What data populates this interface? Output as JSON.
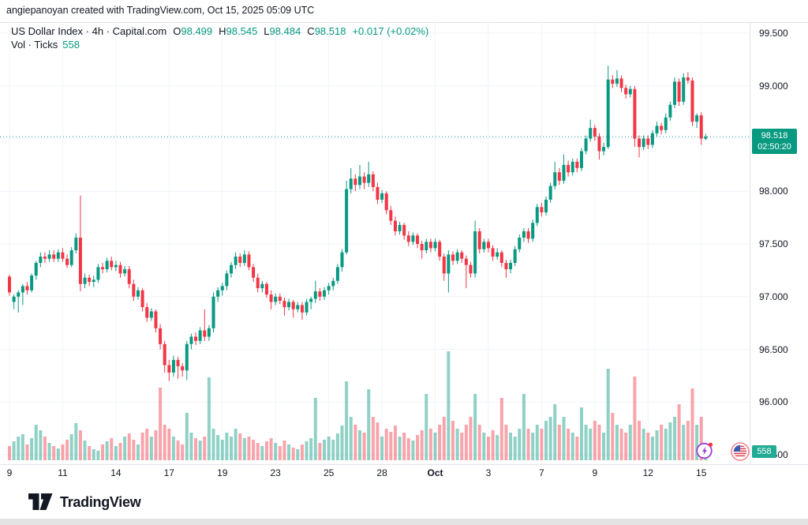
{
  "attribution": "angiepanoyan created with TradingView.com, Oct 15, 2025 05:09 UTC",
  "legend": {
    "title": "US Dollar Index · 4h · Capital.com",
    "ohlc": [
      {
        "label": "O",
        "value": "98.499"
      },
      {
        "label": "H",
        "value": "98.545"
      },
      {
        "label": "L",
        "value": "98.484"
      },
      {
        "label": "C",
        "value": "98.518"
      }
    ],
    "change": "+0.017 (+0.02%)",
    "volume_row": {
      "label": "Vol · Ticks",
      "value": "558"
    }
  },
  "price_tag": {
    "price": "98.518",
    "countdown": "02:50:20"
  },
  "volume_tag": "558",
  "logo_text": "TradingView",
  "colors": {
    "up": "#089981",
    "down": "#f23645",
    "up_volume": "rgba(8,153,129,0.45)",
    "down_volume": "rgba(242,54,69,0.45)",
    "accent": "#089981",
    "grid": "#f0f3fa",
    "border": "#e0e3eb",
    "text": "#131722",
    "tag_bg": "#089981",
    "volume_tag_bg": "#22ab94",
    "flash_purple": "#9c3fd4",
    "dot_red": "#f23645",
    "flag_red": "#e03d4e",
    "flag_blue": "#3c5bb0",
    "flag_ring": "#f0868f"
  },
  "chart_data": {
    "type": "candlestick",
    "symbol": "US Dollar Index",
    "interval": "4h",
    "feed": "Capital.com",
    "volume_unit": "Ticks",
    "current": {
      "open": 98.499,
      "high": 98.545,
      "low": 98.484,
      "close": 98.518,
      "change": 0.017,
      "change_pct": 0.02,
      "volume_ticks": 558,
      "countdown": "02:50:20"
    },
    "y_axis": {
      "min": 95.5,
      "max": 99.5,
      "step": 0.5,
      "grid": true,
      "labels": [
        {
          "text": "99.500",
          "price": 99.5
        },
        {
          "text": "99.000",
          "price": 99.0
        },
        {
          "text": "98.000",
          "price": 98.0
        },
        {
          "text": "97.500",
          "price": 97.5
        },
        {
          "text": "97.000",
          "price": 97.0
        },
        {
          "text": "96.500",
          "price": 96.5
        },
        {
          "text": "96.000",
          "price": 96.0
        },
        {
          "text": "95.500",
          "price": 95.5
        }
      ]
    },
    "x_axis": {
      "labels": [
        "9",
        "11",
        "14",
        "17",
        "19",
        "23",
        "25",
        "28",
        "Oct",
        "3",
        "7",
        "9",
        "12",
        "15"
      ],
      "candle_index": [
        0,
        12,
        24,
        36,
        48,
        60,
        72,
        84,
        96,
        108,
        120,
        132,
        144,
        156
      ]
    },
    "ohlcv_note": "each candle = [open, high, low, close, volume_bar_height_px]",
    "candles": [
      [
        97.19,
        97.21,
        97.01,
        97.04,
        18
      ],
      [
        96.95,
        97.02,
        96.88,
        97.0,
        24
      ],
      [
        97.0,
        97.06,
        96.85,
        97.04,
        30
      ],
      [
        97.04,
        97.12,
        96.92,
        97.1,
        33
      ],
      [
        97.1,
        97.14,
        97.02,
        97.06,
        20
      ],
      [
        97.06,
        97.22,
        97.04,
        97.2,
        28
      ],
      [
        97.2,
        97.34,
        97.16,
        97.32,
        45
      ],
      [
        97.32,
        97.42,
        97.28,
        97.38,
        38
      ],
      [
        97.38,
        97.42,
        97.32,
        97.36,
        30
      ],
      [
        97.36,
        97.44,
        97.33,
        97.4,
        22
      ],
      [
        97.4,
        97.44,
        97.33,
        97.36,
        18
      ],
      [
        97.36,
        97.45,
        97.33,
        97.42,
        15
      ],
      [
        97.42,
        97.46,
        97.33,
        97.36,
        20
      ],
      [
        97.36,
        97.4,
        97.27,
        97.3,
        26
      ],
      [
        97.3,
        97.47,
        97.28,
        97.44,
        33
      ],
      [
        97.44,
        97.6,
        97.41,
        97.56,
        47
      ],
      [
        97.56,
        97.96,
        97.05,
        97.12,
        38
      ],
      [
        97.12,
        97.22,
        97.08,
        97.18,
        25
      ],
      [
        97.18,
        97.21,
        97.1,
        97.14,
        18
      ],
      [
        97.14,
        97.2,
        97.09,
        97.16,
        14
      ],
      [
        97.16,
        97.31,
        97.13,
        97.28,
        12
      ],
      [
        97.28,
        97.32,
        97.22,
        97.26,
        20
      ],
      [
        97.26,
        97.37,
        97.23,
        97.34,
        24
      ],
      [
        97.34,
        97.38,
        97.25,
        97.28,
        28
      ],
      [
        97.28,
        97.34,
        97.24,
        97.3,
        18
      ],
      [
        97.3,
        97.33,
        97.18,
        97.22,
        22
      ],
      [
        97.22,
        97.29,
        97.19,
        97.26,
        30
      ],
      [
        97.26,
        97.29,
        97.08,
        97.12,
        34
      ],
      [
        97.12,
        97.16,
        96.96,
        97.0,
        26
      ],
      [
        97.0,
        97.09,
        96.97,
        97.06,
        20
      ],
      [
        97.06,
        97.08,
        96.86,
        96.9,
        35
      ],
      [
        96.9,
        96.94,
        96.76,
        96.8,
        40
      ],
      [
        96.8,
        96.89,
        96.77,
        96.86,
        30
      ],
      [
        96.86,
        96.88,
        96.66,
        96.7,
        38
      ],
      [
        96.7,
        96.74,
        96.5,
        96.55,
        92
      ],
      [
        96.55,
        96.58,
        96.28,
        96.35,
        45
      ],
      [
        96.35,
        96.4,
        96.2,
        96.28,
        40
      ],
      [
        96.28,
        96.44,
        96.24,
        96.4,
        30
      ],
      [
        96.4,
        96.43,
        96.22,
        96.34,
        25
      ],
      [
        96.34,
        96.37,
        96.24,
        96.3,
        20
      ],
      [
        96.3,
        96.58,
        96.21,
        96.55,
        60
      ],
      [
        96.55,
        96.65,
        96.5,
        96.62,
        35
      ],
      [
        96.62,
        96.66,
        96.54,
        96.58,
        28
      ],
      [
        96.58,
        96.71,
        96.55,
        96.68,
        25
      ],
      [
        96.68,
        96.88,
        96.58,
        96.62,
        30
      ],
      [
        96.62,
        96.73,
        96.58,
        96.7,
        105
      ],
      [
        96.7,
        97.04,
        96.66,
        97.0,
        40
      ],
      [
        97.0,
        97.09,
        96.95,
        97.06,
        32
      ],
      [
        97.06,
        97.13,
        97.01,
        97.1,
        26
      ],
      [
        97.1,
        97.25,
        97.06,
        97.22,
        35
      ],
      [
        97.22,
        97.33,
        97.18,
        97.3,
        30
      ],
      [
        97.3,
        97.42,
        97.26,
        97.38,
        40
      ],
      [
        97.38,
        97.41,
        97.28,
        97.32,
        34
      ],
      [
        97.32,
        97.44,
        97.29,
        97.4,
        28
      ],
      [
        97.4,
        97.43,
        97.25,
        97.28,
        30
      ],
      [
        97.28,
        97.31,
        97.14,
        97.18,
        26
      ],
      [
        97.18,
        97.22,
        97.04,
        97.08,
        22
      ],
      [
        97.08,
        97.15,
        97.04,
        97.12,
        18
      ],
      [
        97.12,
        97.14,
        96.99,
        97.02,
        24
      ],
      [
        97.02,
        97.06,
        96.88,
        96.95,
        28
      ],
      [
        96.95,
        97.03,
        96.92,
        97.0,
        22
      ],
      [
        97.0,
        97.03,
        96.93,
        96.96,
        18
      ],
      [
        96.96,
        96.99,
        96.82,
        96.9,
        25
      ],
      [
        96.9,
        96.98,
        96.87,
        96.95,
        20
      ],
      [
        96.95,
        96.97,
        96.8,
        96.88,
        16
      ],
      [
        96.88,
        96.95,
        96.85,
        96.92,
        14
      ],
      [
        96.92,
        96.95,
        96.78,
        96.85,
        20
      ],
      [
        96.85,
        96.98,
        96.82,
        96.95,
        24
      ],
      [
        96.95,
        97.0,
        96.88,
        96.98,
        28
      ],
      [
        96.98,
        97.15,
        96.94,
        97.05,
        79
      ],
      [
        97.05,
        97.08,
        96.96,
        97.0,
        22
      ],
      [
        97.0,
        97.09,
        96.97,
        97.06,
        26
      ],
      [
        97.06,
        97.13,
        97.02,
        97.1,
        30
      ],
      [
        97.1,
        97.18,
        97.06,
        97.15,
        26
      ],
      [
        97.15,
        97.31,
        97.12,
        97.28,
        34
      ],
      [
        97.28,
        97.45,
        97.24,
        97.42,
        44
      ],
      [
        97.42,
        98.1,
        97.4,
        98.02,
        100
      ],
      [
        98.02,
        98.22,
        97.98,
        98.12,
        55
      ],
      [
        98.12,
        98.16,
        98.0,
        98.06,
        45
      ],
      [
        98.06,
        98.25,
        98.02,
        98.14,
        38
      ],
      [
        98.14,
        98.18,
        98.02,
        98.08,
        35
      ],
      [
        98.08,
        98.28,
        98.04,
        98.16,
        90
      ],
      [
        98.16,
        98.19,
        98.0,
        98.04,
        55
      ],
      [
        98.04,
        98.08,
        97.88,
        97.92,
        48
      ],
      [
        97.92,
        98.01,
        97.89,
        97.98,
        30
      ],
      [
        97.98,
        98.0,
        97.78,
        97.82,
        40
      ],
      [
        97.82,
        97.86,
        97.68,
        97.72,
        36
      ],
      [
        97.72,
        97.76,
        97.58,
        97.62,
        44
      ],
      [
        97.62,
        97.71,
        97.59,
        97.68,
        30
      ],
      [
        97.68,
        97.7,
        97.54,
        97.58,
        35
      ],
      [
        97.58,
        97.62,
        97.48,
        97.52,
        28
      ],
      [
        97.52,
        97.61,
        97.49,
        97.58,
        25
      ],
      [
        97.58,
        97.6,
        97.46,
        97.5,
        32
      ],
      [
        97.5,
        97.53,
        97.36,
        97.44,
        38
      ],
      [
        97.44,
        97.55,
        97.41,
        97.52,
        84
      ],
      [
        97.52,
        97.55,
        97.42,
        97.46,
        40
      ],
      [
        97.46,
        97.55,
        97.43,
        97.52,
        35
      ],
      [
        97.52,
        97.54,
        97.34,
        97.38,
        45
      ],
      [
        97.38,
        97.41,
        97.15,
        97.22,
        55
      ],
      [
        97.22,
        97.44,
        97.04,
        97.4,
        138
      ],
      [
        97.4,
        97.43,
        97.3,
        97.34,
        50
      ],
      [
        97.34,
        97.45,
        97.31,
        97.42,
        40
      ],
      [
        97.42,
        97.44,
        97.32,
        97.36,
        35
      ],
      [
        97.36,
        97.39,
        97.08,
        97.3,
        45
      ],
      [
        97.3,
        97.33,
        97.18,
        97.22,
        55
      ],
      [
        97.22,
        97.72,
        97.18,
        97.62,
        84
      ],
      [
        97.62,
        97.65,
        97.41,
        97.45,
        45
      ],
      [
        97.45,
        97.55,
        97.42,
        97.52,
        35
      ],
      [
        97.52,
        97.55,
        97.42,
        97.46,
        30
      ],
      [
        97.46,
        97.49,
        97.34,
        97.38,
        38
      ],
      [
        97.38,
        97.46,
        97.35,
        97.42,
        32
      ],
      [
        97.42,
        97.44,
        97.28,
        97.32,
        79
      ],
      [
        97.32,
        97.35,
        97.18,
        97.26,
        45
      ],
      [
        97.26,
        97.35,
        97.22,
        97.32,
        35
      ],
      [
        97.32,
        97.48,
        97.29,
        97.45,
        30
      ],
      [
        97.45,
        97.59,
        97.42,
        97.56,
        40
      ],
      [
        97.56,
        97.65,
        97.52,
        97.62,
        84
      ],
      [
        97.62,
        97.65,
        97.51,
        97.55,
        40
      ],
      [
        97.55,
        97.73,
        97.52,
        97.7,
        35
      ],
      [
        97.7,
        97.88,
        97.67,
        97.85,
        45
      ],
      [
        97.85,
        97.89,
        97.76,
        97.8,
        40
      ],
      [
        97.8,
        97.95,
        97.77,
        97.92,
        50
      ],
      [
        97.92,
        98.08,
        97.89,
        98.05,
        55
      ],
      [
        98.05,
        98.28,
        98.02,
        98.18,
        71
      ],
      [
        98.18,
        98.22,
        98.06,
        98.1,
        45
      ],
      [
        98.1,
        98.35,
        98.07,
        98.25,
        55
      ],
      [
        98.25,
        98.29,
        98.14,
        98.18,
        40
      ],
      [
        98.18,
        98.31,
        98.15,
        98.28,
        35
      ],
      [
        98.28,
        98.31,
        98.18,
        98.22,
        30
      ],
      [
        98.22,
        98.41,
        98.19,
        98.38,
        67
      ],
      [
        98.38,
        98.53,
        98.35,
        98.5,
        45
      ],
      [
        98.5,
        98.68,
        98.47,
        98.6,
        40
      ],
      [
        98.6,
        98.63,
        98.48,
        98.52,
        50
      ],
      [
        98.52,
        98.55,
        98.3,
        98.38,
        45
      ],
      [
        98.38,
        98.46,
        98.34,
        98.42,
        35
      ],
      [
        98.42,
        99.19,
        98.4,
        99.06,
        116
      ],
      [
        99.06,
        99.1,
        98.98,
        99.02,
        60
      ],
      [
        99.02,
        99.15,
        98.99,
        99.07,
        45
      ],
      [
        99.07,
        99.1,
        98.94,
        98.98,
        40
      ],
      [
        98.98,
        99.01,
        98.88,
        98.92,
        35
      ],
      [
        98.92,
        99.0,
        98.89,
        98.97,
        45
      ],
      [
        98.97,
        99.0,
        98.42,
        98.5,
        106
      ],
      [
        98.5,
        98.53,
        98.32,
        98.42,
        50
      ],
      [
        98.42,
        98.53,
        98.39,
        98.5,
        40
      ],
      [
        98.5,
        98.53,
        98.4,
        98.44,
        35
      ],
      [
        98.44,
        98.58,
        98.41,
        98.55,
        30
      ],
      [
        98.55,
        98.66,
        98.52,
        98.62,
        38
      ],
      [
        98.62,
        98.65,
        98.54,
        98.58,
        45
      ],
      [
        98.58,
        98.74,
        98.55,
        98.7,
        40
      ],
      [
        98.7,
        98.85,
        98.67,
        98.82,
        48
      ],
      [
        98.82,
        99.08,
        98.79,
        99.04,
        55
      ],
      [
        99.04,
        99.07,
        98.81,
        98.85,
        71
      ],
      [
        98.85,
        99.12,
        98.82,
        99.08,
        45
      ],
      [
        99.08,
        99.13,
        99.02,
        99.05,
        50
      ],
      [
        99.05,
        99.08,
        98.62,
        98.66,
        91
      ],
      [
        98.66,
        98.74,
        98.6,
        98.72,
        45
      ],
      [
        98.72,
        98.75,
        98.44,
        98.5,
        55
      ],
      [
        98.499,
        98.545,
        98.484,
        98.518,
        10
      ]
    ]
  }
}
